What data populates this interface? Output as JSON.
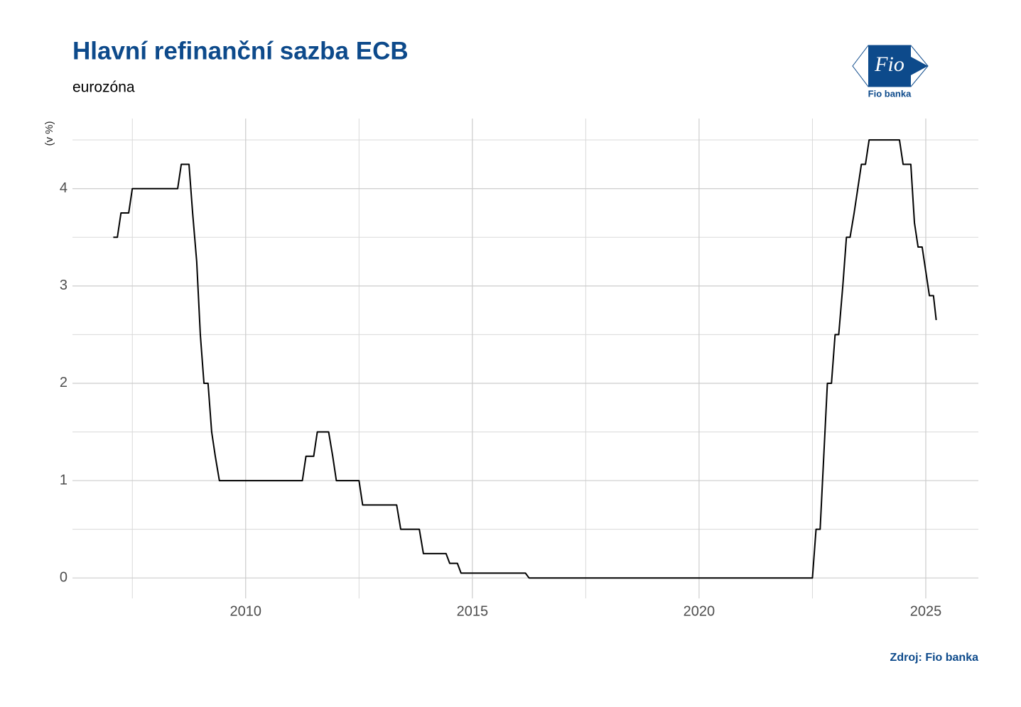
{
  "chart_data": {
    "type": "line",
    "title": "Hlavní refinanční sazba ECB",
    "subtitle": "eurozóna",
    "y_label": "(v %)",
    "source": "Zdroj: Fio banka",
    "logo": {
      "mark": "Fio",
      "name": "Fio banka"
    },
    "x": [
      2007.08,
      2007.17,
      2007.25,
      2007.42,
      2007.5,
      2008.5,
      2008.58,
      2008.75,
      2008.83,
      2008.92,
      2009.0,
      2009.08,
      2009.17,
      2009.25,
      2009.33,
      2009.42,
      2011.25,
      2011.33,
      2011.5,
      2011.58,
      2011.83,
      2011.92,
      2012.0,
      2012.5,
      2012.58,
      2013.33,
      2013.42,
      2013.83,
      2013.92,
      2014.42,
      2014.5,
      2014.67,
      2014.75,
      2016.17,
      2016.25,
      2022.5,
      2022.58,
      2022.67,
      2022.75,
      2022.83,
      2022.92,
      2023.0,
      2023.08,
      2023.17,
      2023.25,
      2023.33,
      2023.42,
      2023.5,
      2023.58,
      2023.67,
      2023.75,
      2024.42,
      2024.5,
      2024.67,
      2024.75,
      2024.83,
      2024.92,
      2025.0,
      2025.08,
      2025.17,
      2025.23
    ],
    "series": [
      {
        "name": "Hlavní refinanční sazba",
        "color": "#000000",
        "values": [
          3.5,
          3.5,
          3.75,
          3.75,
          4.0,
          4.0,
          4.25,
          4.25,
          3.75,
          3.25,
          2.5,
          2.0,
          2.0,
          1.5,
          1.25,
          1.0,
          1.0,
          1.25,
          1.25,
          1.5,
          1.5,
          1.25,
          1.0,
          1.0,
          0.75,
          0.75,
          0.5,
          0.5,
          0.25,
          0.25,
          0.15,
          0.15,
          0.05,
          0.05,
          0,
          0,
          0.5,
          0.5,
          1.25,
          2.0,
          2.0,
          2.5,
          2.5,
          3.0,
          3.5,
          3.5,
          3.75,
          4.0,
          4.25,
          4.25,
          4.5,
          4.5,
          4.25,
          4.25,
          3.65,
          3.4,
          3.4,
          3.15,
          2.9,
          2.9,
          2.65
        ]
      }
    ],
    "xlim": [
      2006.18,
      2026.16
    ],
    "ylim": [
      -0.21,
      4.72
    ],
    "xticks": [
      2010,
      2015,
      2020,
      2025
    ],
    "yticks": [
      0,
      1,
      2,
      3,
      4
    ],
    "x_minor_ticks": [
      2007.5,
      2012.5,
      2017.5,
      2022.5
    ],
    "y_minor_ticks": [
      0.5,
      1.5,
      2.5,
      3.5,
      4.5
    ],
    "grid": true,
    "title_color": "#0d4a8b"
  }
}
